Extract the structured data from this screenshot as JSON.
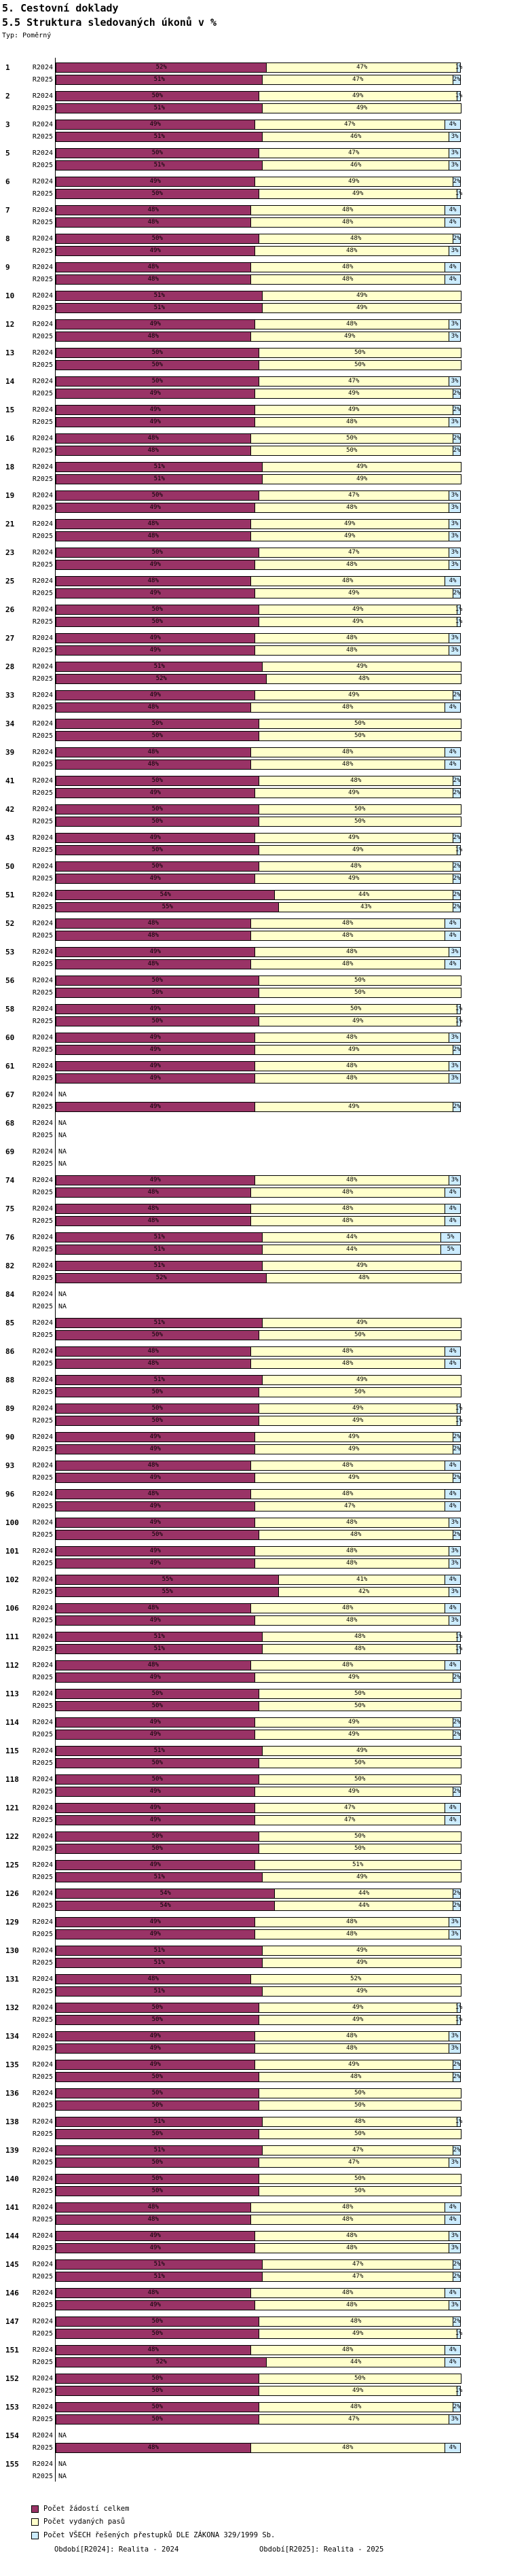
{
  "title": "5. Cestovní doklady",
  "subtitle": "5.5 Struktura sledovaných úkonů v %",
  "type_label": "Typ: Poměrný",
  "footer": {
    "r2024_note": "Období[R2024]: Realita - 2024",
    "r2025_note": "Období[R2025]: Realita - 2025"
  },
  "chart_data": {
    "type": "bar",
    "orientation": "horizontal",
    "stacked": true,
    "unit": "%",
    "value_range": [
      0,
      100
    ],
    "na_text": "NA",
    "period_labels": [
      "R2024",
      "R2025"
    ],
    "segments": [
      {
        "name": "Počet žádostí celkem",
        "color": "#993366"
      },
      {
        "name": "Počet vydaných pasů",
        "color": "#FFFFCC"
      },
      {
        "name": "Počet VŠECH řešených přestupků DLE ZÁKONA 329/1999 Sb.",
        "color": "#CCECFF"
      }
    ],
    "groups": [
      {
        "id": "1",
        "r2024": [
          52,
          47,
          1
        ],
        "r2025": [
          51,
          47,
          2
        ]
      },
      {
        "id": "2",
        "r2024": [
          50,
          49,
          1
        ],
        "r2025": [
          51,
          49
        ]
      },
      {
        "id": "3",
        "r2024": [
          49,
          47,
          4
        ],
        "r2025": [
          51,
          46,
          3
        ]
      },
      {
        "id": "5",
        "r2024": [
          50,
          47,
          3
        ],
        "r2025": [
          51,
          46,
          3
        ]
      },
      {
        "id": "6",
        "r2024": [
          49,
          49,
          2
        ],
        "r2025": [
          50,
          49,
          1
        ]
      },
      {
        "id": "7",
        "r2024": [
          48,
          48,
          4
        ],
        "r2025": [
          48,
          48,
          4
        ]
      },
      {
        "id": "8",
        "r2024": [
          50,
          48,
          2
        ],
        "r2025": [
          49,
          48,
          3
        ]
      },
      {
        "id": "9",
        "r2024": [
          48,
          48,
          4
        ],
        "r2025": [
          48,
          48,
          4
        ]
      },
      {
        "id": "10",
        "r2024": [
          51,
          49
        ],
        "r2025": [
          51,
          49
        ]
      },
      {
        "id": "12",
        "r2024": [
          49,
          48,
          3
        ],
        "r2025": [
          48,
          49,
          3
        ]
      },
      {
        "id": "13",
        "r2024": [
          50,
          50
        ],
        "r2025": [
          50,
          50
        ]
      },
      {
        "id": "14",
        "r2024": [
          50,
          47,
          3
        ],
        "r2025": [
          49,
          49,
          2
        ]
      },
      {
        "id": "15",
        "r2024": [
          49,
          49,
          2
        ],
        "r2025": [
          49,
          48,
          3
        ]
      },
      {
        "id": "16",
        "r2024": [
          48,
          50,
          2
        ],
        "r2025": [
          48,
          50,
          2
        ]
      },
      {
        "id": "18",
        "r2024": [
          51,
          49
        ],
        "r2025": [
          51,
          49
        ]
      },
      {
        "id": "19",
        "r2024": [
          50,
          47,
          3
        ],
        "r2025": [
          49,
          48,
          3
        ]
      },
      {
        "id": "21",
        "r2024": [
          48,
          49,
          3
        ],
        "r2025": [
          48,
          49,
          3
        ]
      },
      {
        "id": "23",
        "r2024": [
          50,
          47,
          3
        ],
        "r2025": [
          49,
          48,
          3
        ]
      },
      {
        "id": "25",
        "r2024": [
          48,
          48,
          4
        ],
        "r2025": [
          49,
          49,
          2
        ]
      },
      {
        "id": "26",
        "r2024": [
          50,
          49,
          1
        ],
        "r2025": [
          50,
          49,
          1
        ]
      },
      {
        "id": "27",
        "r2024": [
          49,
          48,
          3
        ],
        "r2025": [
          49,
          48,
          3
        ]
      },
      {
        "id": "28",
        "r2024": [
          51,
          49
        ],
        "r2025": [
          52,
          48
        ]
      },
      {
        "id": "33",
        "r2024": [
          49,
          49,
          2
        ],
        "r2025": [
          48,
          48,
          4
        ]
      },
      {
        "id": "34",
        "r2024": [
          50,
          50
        ],
        "r2025": [
          50,
          50
        ]
      },
      {
        "id": "39",
        "r2024": [
          48,
          48,
          4
        ],
        "r2025": [
          48,
          48,
          4
        ]
      },
      {
        "id": "41",
        "r2024": [
          50,
          48,
          2
        ],
        "r2025": [
          49,
          49,
          2
        ]
      },
      {
        "id": "42",
        "r2024": [
          50,
          50
        ],
        "r2025": [
          50,
          50
        ]
      },
      {
        "id": "43",
        "r2024": [
          49,
          49,
          2
        ],
        "r2025": [
          50,
          49,
          1
        ]
      },
      {
        "id": "50",
        "r2024": [
          50,
          48,
          2
        ],
        "r2025": [
          49,
          49,
          2
        ]
      },
      {
        "id": "51",
        "r2024": [
          54,
          44,
          2
        ],
        "r2025": [
          55,
          43,
          2
        ]
      },
      {
        "id": "52",
        "r2024": [
          48,
          48,
          4
        ],
        "r2025": [
          48,
          48,
          4
        ]
      },
      {
        "id": "53",
        "r2024": [
          49,
          48,
          3
        ],
        "r2025": [
          48,
          48,
          4
        ]
      },
      {
        "id": "56",
        "r2024": [
          50,
          50
        ],
        "r2025": [
          50,
          50
        ]
      },
      {
        "id": "58",
        "r2024": [
          49,
          50,
          1
        ],
        "r2025": [
          50,
          49,
          1
        ]
      },
      {
        "id": "60",
        "r2024": [
          49,
          48,
          3
        ],
        "r2025": [
          49,
          49,
          2
        ]
      },
      {
        "id": "61",
        "r2024": [
          49,
          48,
          3
        ],
        "r2025": [
          49,
          48,
          3
        ]
      },
      {
        "id": "67",
        "r2024": null,
        "r2025": [
          49,
          49,
          2
        ]
      },
      {
        "id": "68",
        "r2024": null,
        "r2025": null
      },
      {
        "id": "69",
        "r2024": null,
        "r2025": null
      },
      {
        "id": "74",
        "r2024": [
          49,
          48,
          3
        ],
        "r2025": [
          48,
          48,
          4
        ]
      },
      {
        "id": "75",
        "r2024": [
          48,
          48,
          4
        ],
        "r2025": [
          48,
          48,
          4
        ]
      },
      {
        "id": "76",
        "r2024": [
          51,
          44,
          5
        ],
        "r2025": [
          51,
          44,
          5
        ]
      },
      {
        "id": "82",
        "r2024": [
          51,
          49
        ],
        "r2025": [
          52,
          48
        ]
      },
      {
        "id": "84",
        "r2024": null,
        "r2025": null
      },
      {
        "id": "85",
        "r2024": [
          51,
          49
        ],
        "r2025": [
          50,
          50
        ]
      },
      {
        "id": "86",
        "r2024": [
          48,
          48,
          4
        ],
        "r2025": [
          48,
          48,
          4
        ]
      },
      {
        "id": "88",
        "r2024": [
          51,
          49
        ],
        "r2025": [
          50,
          50
        ]
      },
      {
        "id": "89",
        "r2024": [
          50,
          49,
          1
        ],
        "r2025": [
          50,
          49,
          1
        ]
      },
      {
        "id": "90",
        "r2024": [
          49,
          49,
          2
        ],
        "r2025": [
          49,
          49,
          2
        ]
      },
      {
        "id": "93",
        "r2024": [
          48,
          48,
          4
        ],
        "r2025": [
          49,
          49,
          2
        ]
      },
      {
        "id": "96",
        "r2024": [
          48,
          48,
          4
        ],
        "r2025": [
          49,
          47,
          4
        ]
      },
      {
        "id": "100",
        "r2024": [
          49,
          48,
          3
        ],
        "r2025": [
          50,
          48,
          2
        ]
      },
      {
        "id": "101",
        "r2024": [
          49,
          48,
          3
        ],
        "r2025": [
          49,
          48,
          3
        ]
      },
      {
        "id": "102",
        "r2024": [
          55,
          41,
          4
        ],
        "r2025": [
          55,
          42,
          3
        ]
      },
      {
        "id": "106",
        "r2024": [
          48,
          48,
          4
        ],
        "r2025": [
          49,
          48,
          3
        ]
      },
      {
        "id": "111",
        "r2024": [
          51,
          48,
          1
        ],
        "r2025": [
          51,
          48,
          1
        ]
      },
      {
        "id": "112",
        "r2024": [
          48,
          48,
          4
        ],
        "r2025": [
          49,
          49,
          2
        ]
      },
      {
        "id": "113",
        "r2024": [
          50,
          50
        ],
        "r2025": [
          50,
          50
        ]
      },
      {
        "id": "114",
        "r2024": [
          49,
          49,
          2
        ],
        "r2025": [
          49,
          49,
          2
        ]
      },
      {
        "id": "115",
        "r2024": [
          51,
          49
        ],
        "r2025": [
          50,
          50
        ]
      },
      {
        "id": "118",
        "r2024": [
          50,
          50
        ],
        "r2025": [
          49,
          49,
          2
        ]
      },
      {
        "id": "121",
        "r2024": [
          49,
          47,
          4
        ],
        "r2025": [
          49,
          47,
          4
        ]
      },
      {
        "id": "122",
        "r2024": [
          50,
          50
        ],
        "r2025": [
          50,
          50
        ]
      },
      {
        "id": "125",
        "r2024": [
          49,
          51
        ],
        "r2025": [
          51,
          49
        ]
      },
      {
        "id": "126",
        "r2024": [
          54,
          44,
          2
        ],
        "r2025": [
          54,
          44,
          2
        ]
      },
      {
        "id": "129",
        "r2024": [
          49,
          48,
          3
        ],
        "r2025": [
          49,
          48,
          3
        ]
      },
      {
        "id": "130",
        "r2024": [
          51,
          49
        ],
        "r2025": [
          51,
          49
        ]
      },
      {
        "id": "131",
        "r2024": [
          48,
          52
        ],
        "r2025": [
          51,
          49
        ]
      },
      {
        "id": "132",
        "r2024": [
          50,
          49,
          1
        ],
        "r2025": [
          50,
          49,
          1
        ]
      },
      {
        "id": "134",
        "r2024": [
          49,
          48,
          3
        ],
        "r2025": [
          49,
          48,
          3
        ]
      },
      {
        "id": "135",
        "r2024": [
          49,
          49,
          2
        ],
        "r2025": [
          50,
          48,
          2
        ]
      },
      {
        "id": "136",
        "r2024": [
          50,
          50
        ],
        "r2025": [
          50,
          50
        ]
      },
      {
        "id": "138",
        "r2024": [
          51,
          48,
          1
        ],
        "r2025": [
          50,
          50
        ]
      },
      {
        "id": "139",
        "r2024": [
          51,
          47,
          2
        ],
        "r2025": [
          50,
          47,
          3
        ]
      },
      {
        "id": "140",
        "r2024": [
          50,
          50
        ],
        "r2025": [
          50,
          50
        ]
      },
      {
        "id": "141",
        "r2024": [
          48,
          48,
          4
        ],
        "r2025": [
          48,
          48,
          4
        ]
      },
      {
        "id": "144",
        "r2024": [
          49,
          48,
          3
        ],
        "r2025": [
          49,
          48,
          3
        ]
      },
      {
        "id": "145",
        "r2024": [
          51,
          47,
          2
        ],
        "r2025": [
          51,
          47,
          2
        ]
      },
      {
        "id": "146",
        "r2024": [
          48,
          48,
          4
        ],
        "r2025": [
          49,
          48,
          3
        ]
      },
      {
        "id": "147",
        "r2024": [
          50,
          48,
          2
        ],
        "r2025": [
          50,
          49,
          1
        ]
      },
      {
        "id": "151",
        "r2024": [
          48,
          48,
          4
        ],
        "r2025": [
          52,
          44,
          4
        ]
      },
      {
        "id": "152",
        "r2024": [
          50,
          50
        ],
        "r2025": [
          50,
          49,
          1
        ]
      },
      {
        "id": "153",
        "r2024": [
          50,
          48,
          2
        ],
        "r2025": [
          50,
          47,
          3
        ]
      },
      {
        "id": "154",
        "r2024": null,
        "r2025": [
          48,
          48,
          4
        ]
      },
      {
        "id": "155",
        "r2024": null,
        "r2025": null
      }
    ]
  }
}
